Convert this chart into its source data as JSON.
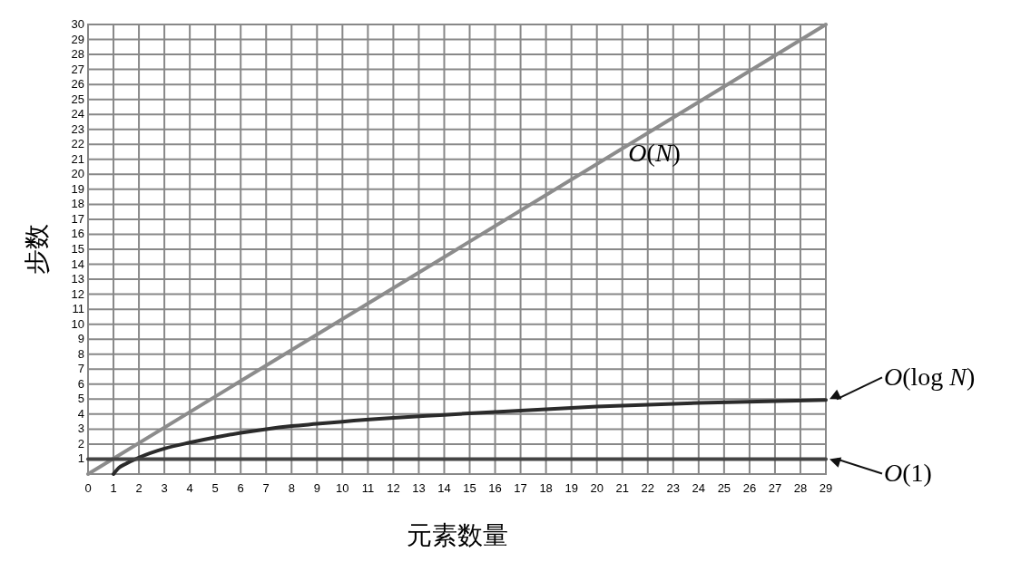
{
  "chart_data": {
    "type": "line",
    "xlabel": "元素数量",
    "ylabel": "步数",
    "xlim": [
      0,
      29
    ],
    "ylim": [
      0,
      30
    ],
    "xticks": [
      0,
      1,
      2,
      3,
      4,
      5,
      6,
      7,
      8,
      9,
      10,
      11,
      12,
      13,
      14,
      15,
      16,
      17,
      18,
      19,
      20,
      21,
      22,
      23,
      24,
      25,
      26,
      27,
      28,
      29
    ],
    "yticks": [
      {
        "value": 0,
        "label": null
      },
      1,
      2,
      3,
      4,
      5,
      6,
      7,
      8,
      9,
      10,
      11,
      12,
      13,
      14,
      15,
      16,
      17,
      18,
      19,
      20,
      21,
      22,
      23,
      24,
      25,
      26,
      27,
      28,
      29,
      30
    ],
    "grid": true,
    "marker": "none",
    "line_style": "solid",
    "series": [
      {
        "color": "#8c8c8c",
        "x": [
          0,
          29
        ],
        "values": [
          0,
          30
        ]
      },
      {
        "color": "#2b2b2b",
        "x": [
          1,
          1.2,
          1.5,
          2,
          3,
          4,
          5,
          6,
          7,
          8,
          9,
          10,
          12,
          14,
          16,
          20,
          24,
          29
        ],
        "values": [
          0,
          0.4,
          0.7,
          1.1,
          1.7,
          2.1,
          2.45,
          2.75,
          3,
          3.2,
          3.35,
          3.5,
          3.75,
          3.95,
          4.15,
          4.5,
          4.75,
          4.95
        ]
      },
      {
        "color": "#444444",
        "x": [
          0,
          29
        ],
        "values": [
          1,
          1
        ]
      }
    ],
    "annotations": [
      "O(N)",
      {
        "text": "O(log N)",
        "x": 29,
        "y": 5
      },
      {
        "text": "O(1)",
        "x": 29,
        "y": 1
      }
    ]
  }
}
